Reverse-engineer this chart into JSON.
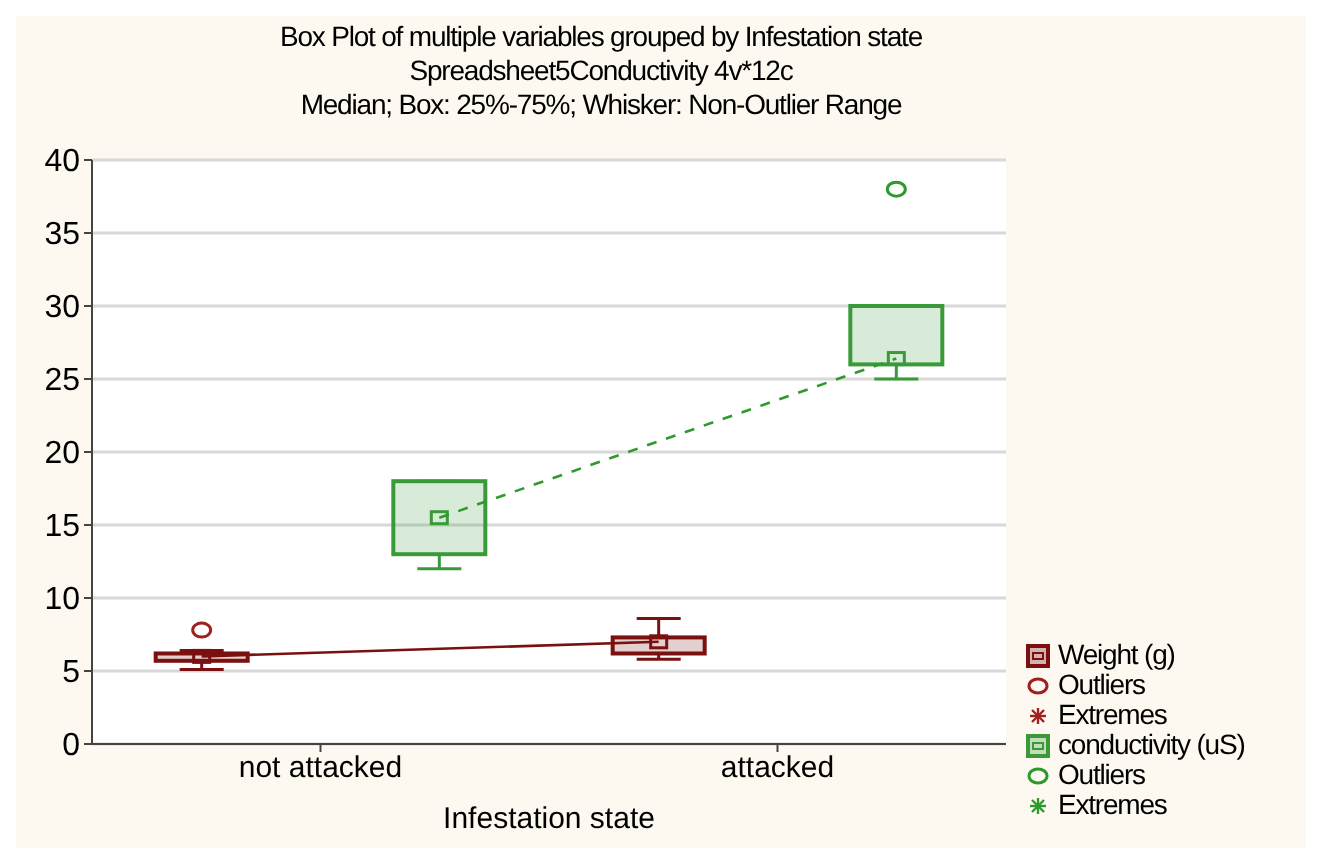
{
  "chart_data": {
    "type": "box",
    "title": "Box Plot of multiple variables grouped by  Infestation state",
    "subtitle": "Spreadsheet5Conductivity 4v*12c",
    "annotations": [
      "Median; Box: 25%-75%; Whisker: Non-Outlier Range"
    ],
    "xlabel": "Infestation state",
    "categories": [
      "not attacked",
      "attacked"
    ],
    "ylim": [
      0,
      40
    ],
    "yticks": [
      0,
      5,
      10,
      15,
      20,
      25,
      30,
      35,
      40
    ],
    "grid": "y",
    "legend": "bottom right",
    "series": [
      {
        "name": "Weight (g)",
        "color": "#7a1010",
        "boxes": [
          {
            "low": 5.1,
            "q1": 5.7,
            "median": 6.0,
            "q3": 6.2,
            "high": 6.4
          },
          {
            "low": 5.8,
            "q1": 6.2,
            "median": 7.0,
            "q3": 7.3,
            "high": 8.6
          }
        ]
      },
      {
        "name": "Outliers",
        "type": "scatter",
        "color": "#a02020",
        "marker": "circle",
        "values": [
          7.8,
          null
        ]
      },
      {
        "name": "Extremes",
        "type": "scatter",
        "color": "#a02020",
        "marker": "star",
        "values": [
          null,
          null
        ]
      },
      {
        "type": "line",
        "color": "#7a1010",
        "line_style": "solid",
        "values": [
          6.0,
          7.0
        ]
      },
      {
        "name": "conductivity (uS)",
        "color": "#3a9a3a",
        "boxes": [
          {
            "low": 12,
            "q1": 13,
            "median": 15.5,
            "q3": 18,
            "high": 18
          },
          {
            "low": 25,
            "q1": 26,
            "median": 26.4,
            "q3": 30,
            "high": 30
          }
        ]
      },
      {
        "name": "Outliers",
        "type": "scatter",
        "color": "#2e9a2e",
        "marker": "circle",
        "values": [
          null,
          38
        ]
      },
      {
        "name": "Extremes",
        "type": "scatter",
        "color": "#2e9a2e",
        "marker": "star",
        "values": [
          null,
          null
        ]
      },
      {
        "type": "line",
        "color": "#2e9a2e",
        "line_style": "dashed",
        "values": [
          15.5,
          26.4
        ]
      }
    ]
  }
}
